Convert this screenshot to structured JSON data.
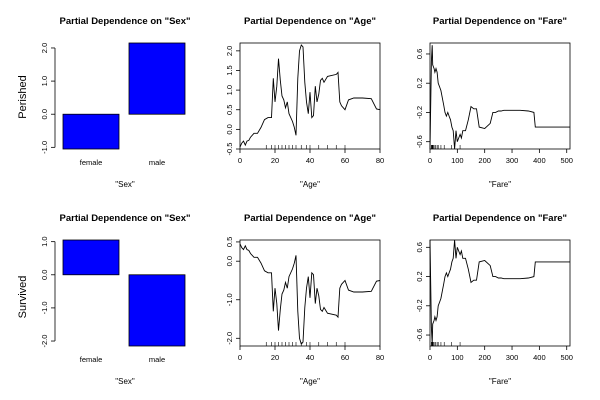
{
  "row_labels": [
    "Perished",
    "Survived"
  ],
  "chart_data": [
    {
      "type": "bar",
      "title": "Partial Dependence on \"Sex\"",
      "xlabel": "\"Sex\"",
      "categories": [
        "female",
        "male"
      ],
      "values": [
        -1.05,
        2.15
      ],
      "ylim": [
        -1.05,
        2.15
      ],
      "yticks": [
        -1.0,
        0.0,
        1.0,
        2.0
      ],
      "ytick_labels": [
        "-1.0",
        "0.0",
        "1.0",
        "2.0"
      ],
      "bar_color": "#0000ff"
    },
    {
      "type": "line",
      "title": "Partial Dependence on \"Age\"",
      "xlabel": "\"Age\"",
      "xlim": [
        0,
        80
      ],
      "ylim": [
        -0.5,
        2.2
      ],
      "xticks": [
        0,
        20,
        40,
        60,
        80
      ],
      "xtick_labels": [
        "0",
        "20",
        "40",
        "60",
        "80"
      ],
      "yticks": [
        -0.5,
        0.0,
        0.5,
        1.0,
        1.5,
        2.0
      ],
      "ytick_labels": [
        "-0.5",
        "0.0",
        "0.5",
        "1.0",
        "1.5",
        "2.0"
      ],
      "rug": [
        15,
        18,
        20,
        22,
        24,
        26,
        28,
        30,
        32,
        35,
        38,
        40,
        45,
        50,
        55,
        60
      ],
      "x": [
        0,
        1,
        2,
        3,
        4,
        5,
        6,
        8,
        10,
        12,
        14,
        16,
        18,
        19,
        20,
        21,
        22,
        23,
        24,
        25,
        26,
        27,
        28,
        30,
        31,
        32,
        33,
        34,
        35,
        36,
        37,
        38,
        39,
        40,
        41,
        42,
        43,
        44,
        45,
        46,
        47,
        48,
        50,
        55,
        56,
        57,
        58,
        60,
        62,
        65,
        70,
        75,
        78,
        80
      ],
      "y": [
        -0.45,
        -0.35,
        -0.3,
        -0.4,
        -0.3,
        -0.28,
        -0.2,
        -0.1,
        -0.1,
        0.05,
        0.25,
        0.3,
        0.3,
        1.3,
        0.7,
        1.1,
        1.8,
        1.25,
        0.85,
        0.75,
        0.55,
        0.7,
        0.4,
        0.2,
        0.05,
        -0.15,
        1.3,
        2.0,
        2.15,
        2.1,
        1.2,
        0.7,
        0.4,
        0.95,
        0.3,
        0.35,
        1.1,
        0.7,
        0.9,
        1.25,
        1.3,
        1.2,
        1.35,
        1.4,
        1.45,
        0.7,
        0.6,
        0.5,
        0.75,
        0.8,
        0.8,
        0.78,
        0.52,
        0.5
      ]
    },
    {
      "type": "line",
      "title": "Partial Dependence on \"Fare\"",
      "xlabel": "\"Fare\"",
      "xlim": [
        0,
        512
      ],
      "ylim": [
        -0.7,
        0.75
      ],
      "xticks": [
        0,
        100,
        200,
        300,
        400,
        500
      ],
      "xtick_labels": [
        "0",
        "100",
        "200",
        "300",
        "400",
        "500"
      ],
      "yticks": [
        -0.6,
        -0.2,
        0.2,
        0.6
      ],
      "ytick_labels": [
        "-0.6",
        "-0.2",
        "0.2",
        "0.6"
      ],
      "rug": [
        5,
        7,
        8,
        10,
        13,
        15,
        20,
        26,
        30,
        40,
        52,
        78,
        110
      ],
      "x": [
        0,
        5,
        8,
        10,
        15,
        18,
        22,
        26,
        30,
        35,
        40,
        45,
        50,
        55,
        60,
        65,
        70,
        75,
        80,
        85,
        90,
        95,
        100,
        105,
        110,
        115,
        120,
        130,
        140,
        150,
        160,
        170,
        180,
        200,
        220,
        230,
        240,
        250,
        260,
        270,
        280,
        300,
        330,
        360,
        380,
        385,
        390,
        400,
        450,
        512
      ],
      "y": [
        -0.7,
        0.5,
        0.72,
        0.45,
        0.4,
        0.35,
        0.4,
        0.35,
        0.2,
        0.15,
        0.1,
        0.0,
        -0.1,
        -0.2,
        -0.25,
        -0.2,
        -0.25,
        -0.3,
        -0.4,
        -0.45,
        -0.7,
        -0.45,
        -0.6,
        -0.55,
        -0.5,
        -0.55,
        -0.45,
        -0.45,
        -0.3,
        -0.12,
        -0.15,
        -0.15,
        -0.4,
        -0.42,
        -0.35,
        -0.2,
        -0.2,
        -0.18,
        -0.18,
        -0.17,
        -0.17,
        -0.17,
        -0.17,
        -0.18,
        -0.2,
        -0.4,
        -0.4,
        -0.4,
        -0.4,
        -0.4
      ]
    },
    {
      "type": "bar",
      "title": "Partial Dependence on \"Sex\"",
      "xlabel": "\"Sex\"",
      "categories": [
        "female",
        "male"
      ],
      "values": [
        1.05,
        -2.15
      ],
      "ylim": [
        -2.15,
        1.05
      ],
      "yticks": [
        -2.0,
        -1.0,
        0.0,
        1.0
      ],
      "ytick_labels": [
        "-2.0",
        "-1.0",
        "0.0",
        "1.0"
      ],
      "bar_color": "#0000ff"
    },
    {
      "type": "line",
      "title": "Partial Dependence on \"Age\"",
      "xlabel": "\"Age\"",
      "xlim": [
        0,
        80
      ],
      "ylim": [
        -2.2,
        0.55
      ],
      "xticks": [
        0,
        20,
        40,
        60,
        80
      ],
      "xtick_labels": [
        "0",
        "20",
        "40",
        "60",
        "80"
      ],
      "yticks": [
        -2.0,
        -1.0,
        0.0,
        0.5
      ],
      "ytick_labels": [
        "-2.0",
        "-1.0",
        "0.0",
        "0.5"
      ],
      "rug": [
        15,
        18,
        20,
        22,
        24,
        26,
        28,
        30,
        32,
        35,
        38,
        40,
        45,
        50,
        55,
        60
      ],
      "x": [
        0,
        1,
        2,
        3,
        4,
        5,
        6,
        8,
        10,
        12,
        14,
        16,
        18,
        19,
        20,
        21,
        22,
        23,
        24,
        25,
        26,
        27,
        28,
        30,
        31,
        32,
        33,
        34,
        35,
        36,
        37,
        38,
        39,
        40,
        41,
        42,
        43,
        44,
        45,
        46,
        47,
        48,
        50,
        55,
        56,
        57,
        58,
        60,
        62,
        65,
        70,
        75,
        78,
        80
      ],
      "y": [
        0.45,
        0.35,
        0.3,
        0.4,
        0.3,
        0.28,
        0.2,
        0.1,
        0.1,
        -0.05,
        -0.25,
        -0.3,
        -0.3,
        -1.3,
        -0.7,
        -1.1,
        -1.8,
        -1.25,
        -0.85,
        -0.75,
        -0.55,
        -0.7,
        -0.4,
        -0.2,
        -0.05,
        0.15,
        -1.3,
        -2.0,
        -2.15,
        -2.1,
        -1.2,
        -0.7,
        -0.4,
        -0.95,
        -0.3,
        -0.35,
        -1.1,
        -0.7,
        -0.9,
        -1.25,
        -1.3,
        -1.2,
        -1.35,
        -1.4,
        -1.45,
        -0.7,
        -0.6,
        -0.5,
        -0.75,
        -0.8,
        -0.8,
        -0.78,
        -0.52,
        -0.5
      ]
    },
    {
      "type": "line",
      "title": "Partial Dependence on \"Fare\"",
      "xlabel": "\"Fare\"",
      "xlim": [
        0,
        512
      ],
      "ylim": [
        -0.75,
        0.7
      ],
      "xticks": [
        0,
        100,
        200,
        300,
        400,
        500
      ],
      "xtick_labels": [
        "0",
        "100",
        "200",
        "300",
        "400",
        "500"
      ],
      "yticks": [
        -0.6,
        -0.2,
        0.2,
        0.6
      ],
      "ytick_labels": [
        "-0.6",
        "-0.2",
        "0.2",
        "0.6"
      ],
      "rug": [
        5,
        7,
        8,
        10,
        13,
        15,
        20,
        26,
        30,
        40,
        52,
        78,
        110
      ],
      "x": [
        0,
        5,
        8,
        10,
        15,
        18,
        22,
        26,
        30,
        35,
        40,
        45,
        50,
        55,
        60,
        65,
        70,
        75,
        80,
        85,
        90,
        95,
        100,
        105,
        110,
        115,
        120,
        130,
        140,
        150,
        160,
        170,
        180,
        200,
        220,
        230,
        240,
        250,
        260,
        270,
        280,
        300,
        330,
        360,
        380,
        385,
        390,
        400,
        450,
        512
      ],
      "y": [
        0.7,
        -0.5,
        -0.72,
        -0.45,
        -0.4,
        -0.35,
        -0.4,
        -0.35,
        -0.2,
        -0.15,
        -0.1,
        0.0,
        0.1,
        0.2,
        0.25,
        0.2,
        0.25,
        0.3,
        0.4,
        0.45,
        0.7,
        0.45,
        0.6,
        0.55,
        0.5,
        0.55,
        0.45,
        0.45,
        0.3,
        0.12,
        0.15,
        0.15,
        0.4,
        0.42,
        0.35,
        0.2,
        0.2,
        0.18,
        0.18,
        0.17,
        0.17,
        0.17,
        0.17,
        0.18,
        0.2,
        0.4,
        0.4,
        0.4,
        0.4,
        0.4
      ]
    }
  ]
}
